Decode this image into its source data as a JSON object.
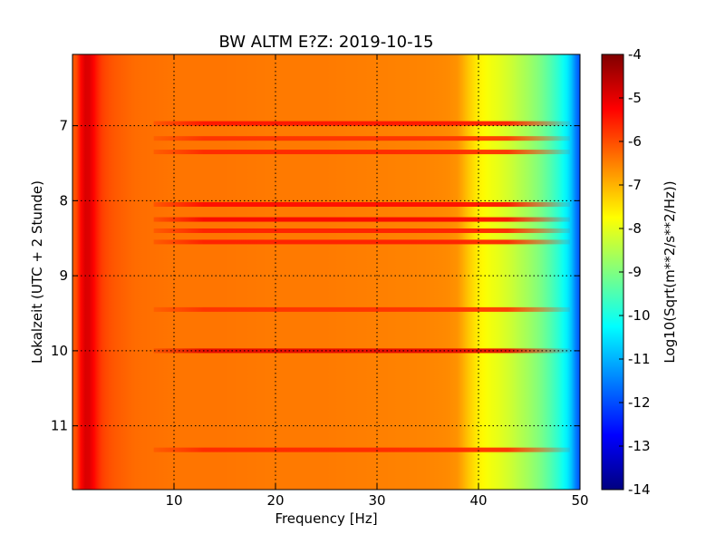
{
  "chart_data": {
    "type": "heatmap",
    "title": "BW ALTM E?Z: 2019-10-15",
    "xlabel": "Frequency [Hz]",
    "ylabel": "Lokalzeit (UTC + 2 Stunde)",
    "xlim": [
      0,
      50
    ],
    "ylim": [
      11.85,
      6.05
    ],
    "y_inverted": true,
    "x_ticks": [
      10,
      20,
      30,
      40,
      50
    ],
    "y_ticks": [
      7,
      8,
      9,
      10,
      11
    ],
    "grid": true,
    "colorbar": {
      "label": "Log10(Sqrt(m**2/s**2/Hz))",
      "range": [
        -14,
        -4
      ],
      "ticks": [
        -4,
        -5,
        -6,
        -7,
        -8,
        -9,
        -10,
        -11,
        -12,
        -13,
        -14
      ],
      "colormap": "jet"
    },
    "frequency_profile": {
      "frequency_hz": [
        0,
        0.5,
        1,
        1.5,
        2,
        2.5,
        3,
        4,
        5,
        6,
        8,
        10,
        12,
        15,
        20,
        25,
        30,
        35,
        37,
        38,
        39,
        40,
        41,
        42,
        43,
        44,
        45,
        46,
        47,
        48,
        49,
        49.5,
        50
      ],
      "log10_level": [
        -6.2,
        -5.9,
        -5.0,
        -4.8,
        -5.2,
        -5.6,
        -5.9,
        -6.1,
        -6.2,
        -6.3,
        -6.35,
        -6.4,
        -6.4,
        -6.4,
        -6.45,
        -6.45,
        -6.5,
        -6.55,
        -6.6,
        -6.7,
        -7.2,
        -7.6,
        -7.85,
        -8.0,
        -8.2,
        -8.45,
        -8.7,
        -9.0,
        -9.4,
        -9.9,
        -10.6,
        -11.4,
        -12.0
      ]
    },
    "time_bands": [
      {
        "time": 6.97,
        "level": -5.4,
        "from_hz": 8,
        "to_hz": 49
      },
      {
        "time": 7.17,
        "level": -5.7,
        "from_hz": 8,
        "to_hz": 49
      },
      {
        "time": 7.35,
        "level": -5.6,
        "from_hz": 8,
        "to_hz": 49
      },
      {
        "time": 8.05,
        "level": -5.3,
        "from_hz": 8,
        "to_hz": 49
      },
      {
        "time": 8.25,
        "level": -5.2,
        "from_hz": 8,
        "to_hz": 49
      },
      {
        "time": 8.4,
        "level": -5.5,
        "from_hz": 8,
        "to_hz": 49
      },
      {
        "time": 8.55,
        "level": -5.5,
        "from_hz": 8,
        "to_hz": 49
      },
      {
        "time": 9.45,
        "level": -5.7,
        "from_hz": 8,
        "to_hz": 49
      },
      {
        "time": 10.0,
        "level": -5.0,
        "from_hz": 8,
        "to_hz": 49
      },
      {
        "time": 11.32,
        "level": -5.6,
        "from_hz": 8,
        "to_hz": 49
      }
    ]
  }
}
